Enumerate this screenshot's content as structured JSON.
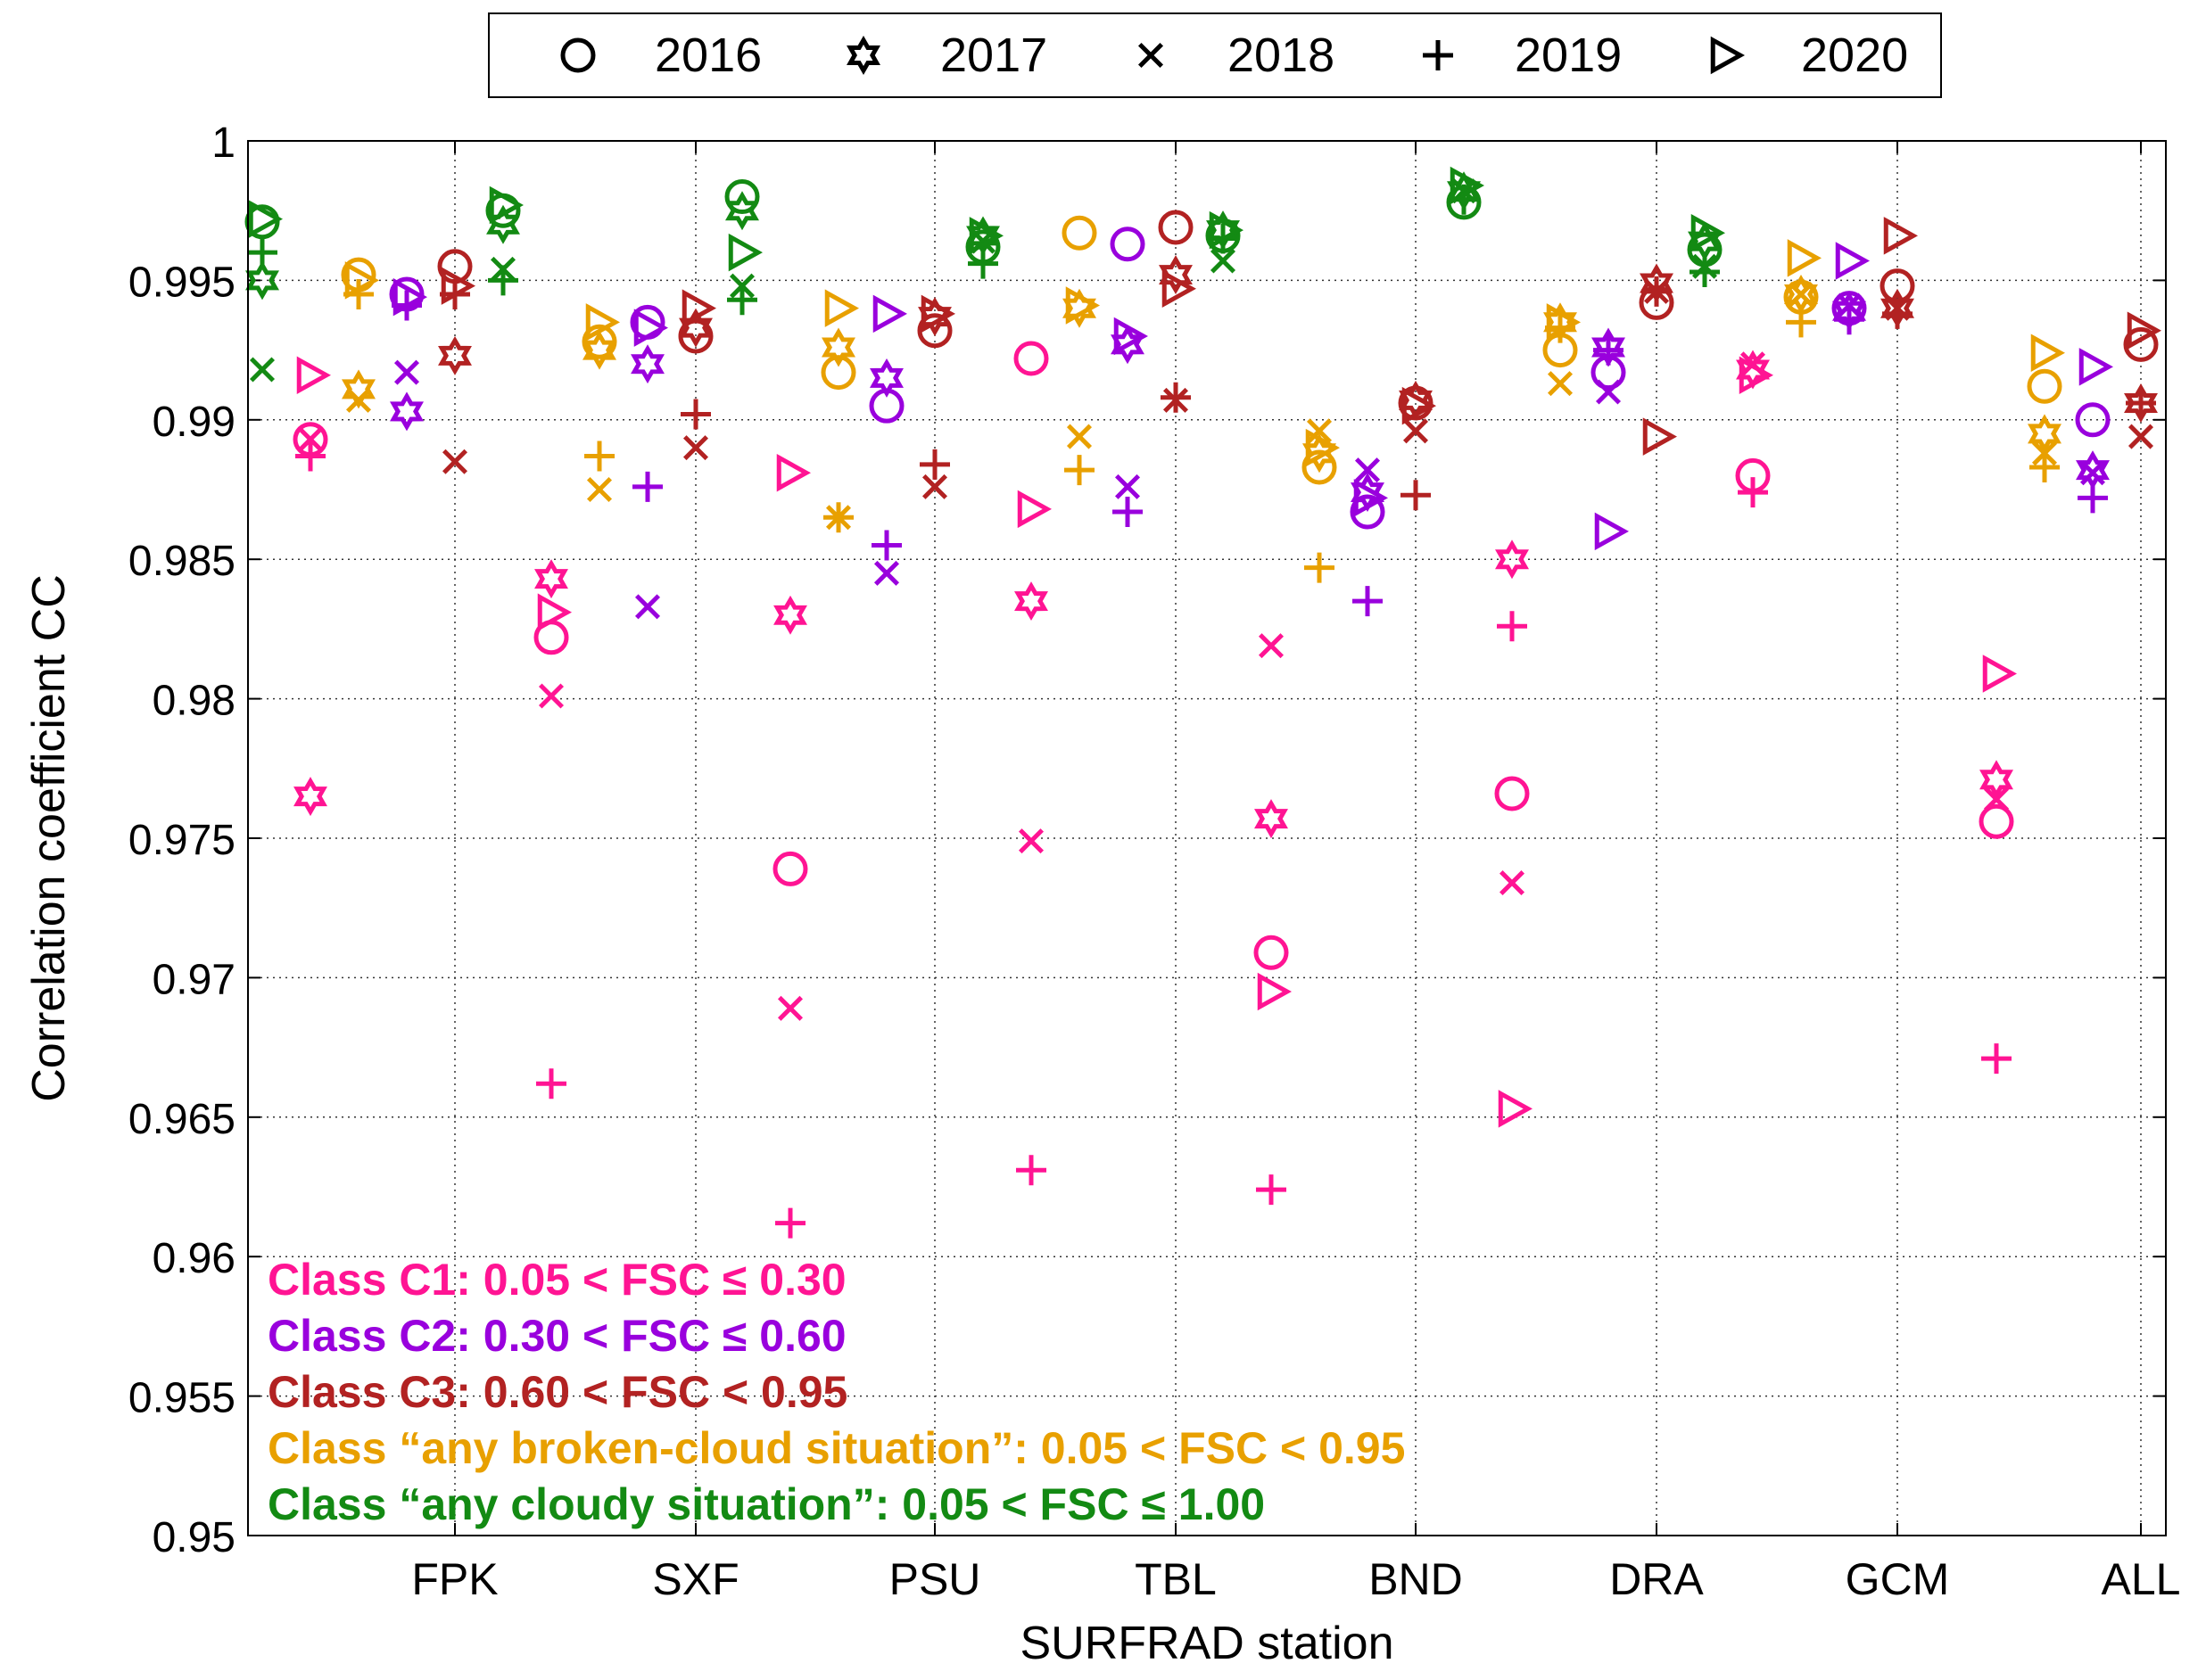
{
  "chart_data": {
    "type": "scatter",
    "xlabel": "SURFRAD station",
    "ylabel": "Correlation coefficient CC",
    "ylim": [
      0.95,
      1.0
    ],
    "yticks": [
      "0.95",
      "0.955",
      "0.96",
      "0.965",
      "0.97",
      "0.975",
      "0.98",
      "0.985",
      "0.99",
      "0.995",
      "1"
    ],
    "categories": [
      "FPK",
      "SXF",
      "PSU",
      "TBL",
      "BND",
      "DRA",
      "GCM",
      "ALL"
    ],
    "grid": true,
    "legend_position": "top",
    "legend": [
      {
        "label": "2016",
        "marker": "circle"
      },
      {
        "label": "2017",
        "marker": "hexagram"
      },
      {
        "label": "2018",
        "marker": "x"
      },
      {
        "label": "2019",
        "marker": "plus"
      },
      {
        "label": "2020",
        "marker": "triangle-right"
      }
    ],
    "class_legend_position": "bottom-left",
    "classes": [
      {
        "name": "C4",
        "label": "Class “any cloudy situation”: 0.05 < FSC ≤ 1.00",
        "color": "#138a13",
        "offset": 0,
        "values": [
          [
            0.9971,
            0.995,
            0.9918,
            0.996,
            0.9972
          ],
          [
            0.9975,
            0.997,
            0.9954,
            0.995,
            0.9977
          ],
          [
            0.998,
            0.9975,
            0.9948,
            0.9943,
            0.996
          ],
          [
            0.9962,
            0.9966,
            0.9964,
            0.9956,
            0.9966
          ],
          [
            0.9966,
            0.9968,
            0.9957,
            0.9965,
            0.9968
          ],
          [
            0.9978,
            0.9982,
            0.9982,
            0.9979,
            0.9984
          ],
          [
            0.9961,
            0.9964,
            0.9955,
            0.9953,
            0.9967
          ],
          [
            null,
            null,
            null,
            null,
            null
          ]
        ]
      },
      {
        "name": "C1",
        "label": "Class C1: 0.05 < FSC ≤ 0.30",
        "color": "#ff1493",
        "offset": 1,
        "values": [
          [
            0.9893,
            0.9765,
            0.9893,
            0.9887,
            0.9916
          ],
          [
            0.9822,
            0.9843,
            0.9801,
            0.9662,
            0.9831
          ],
          [
            0.9739,
            0.983,
            0.9689,
            0.9612,
            0.9881
          ],
          [
            0.9922,
            0.9835,
            0.9749,
            0.9631,
            0.9868
          ],
          [
            0.9709,
            0.9757,
            0.9819,
            0.9624,
            0.9695
          ],
          [
            0.9766,
            0.985,
            0.9734,
            0.9826,
            0.9653
          ],
          [
            0.988,
            0.9918,
            0.992,
            0.9874,
            0.9916
          ],
          [
            0.9756,
            0.9771,
            0.9764,
            0.9671,
            0.9809
          ]
        ]
      },
      {
        "name": "BROKEN",
        "label": "Class “any broken-cloud situation”: 0.05 < FSC < 0.95",
        "color": "#e8a000",
        "offset": 2,
        "values": [
          [
            0.9952,
            0.9911,
            0.9907,
            0.9945,
            0.995
          ],
          [
            0.9928,
            0.9925,
            0.9875,
            0.9887,
            0.9935
          ],
          [
            0.9917,
            0.9926,
            0.9865,
            0.9865,
            0.994
          ],
          [
            0.9967,
            0.994,
            0.9894,
            0.9882,
            0.9941
          ],
          [
            0.9883,
            0.9888,
            0.9896,
            0.9847,
            0.989
          ],
          [
            0.9925,
            0.9935,
            0.9913,
            0.9933,
            0.9935
          ],
          [
            0.9944,
            0.9945,
            0.9945,
            0.9935,
            0.9958
          ],
          [
            0.9912,
            0.9895,
            0.9888,
            0.9883,
            0.9924
          ]
        ]
      },
      {
        "name": "C2",
        "label": "Class C2: 0.30 < FSC ≤ 0.60",
        "color": "#9900dd",
        "offset": 3,
        "values": [
          [
            0.9945,
            0.9903,
            0.9917,
            0.9941,
            0.9944
          ],
          [
            0.9935,
            0.992,
            0.9833,
            0.9876,
            0.9933
          ],
          [
            0.9905,
            0.9915,
            0.9845,
            0.9855,
            0.9938
          ],
          [
            0.9963,
            0.9927,
            0.9876,
            0.9867,
            0.993
          ],
          [
            0.9867,
            0.9874,
            0.9882,
            0.9835,
            0.9872
          ],
          [
            0.9917,
            0.9926,
            0.991,
            0.9925,
            0.986
          ],
          [
            0.994,
            0.9939,
            0.9941,
            0.9936,
            0.9957
          ],
          [
            0.99,
            0.9882,
            0.9881,
            0.9872,
            0.9919
          ]
        ]
      },
      {
        "name": "C3",
        "label": "Class C3: 0.60 < FSC < 0.95",
        "color": "#b22222",
        "offset": 4,
        "values": [
          [
            0.9955,
            0.9923,
            0.9885,
            0.9945,
            0.9948
          ],
          [
            0.993,
            0.9933,
            0.989,
            0.9902,
            0.994
          ],
          [
            0.9932,
            0.9937,
            0.9876,
            0.9884,
            0.9938
          ],
          [
            0.9969,
            0.9952,
            0.9907,
            0.9908,
            0.9947
          ],
          [
            0.9906,
            0.9907,
            0.9896,
            0.9873,
            0.9905
          ],
          [
            0.9942,
            0.9949,
            0.9946,
            0.9946,
            0.9894
          ],
          [
            0.9948,
            0.994,
            0.994,
            0.9938,
            0.9966
          ],
          [
            0.9927,
            0.9906,
            0.9894,
            0.9906,
            0.9932
          ]
        ]
      }
    ]
  }
}
